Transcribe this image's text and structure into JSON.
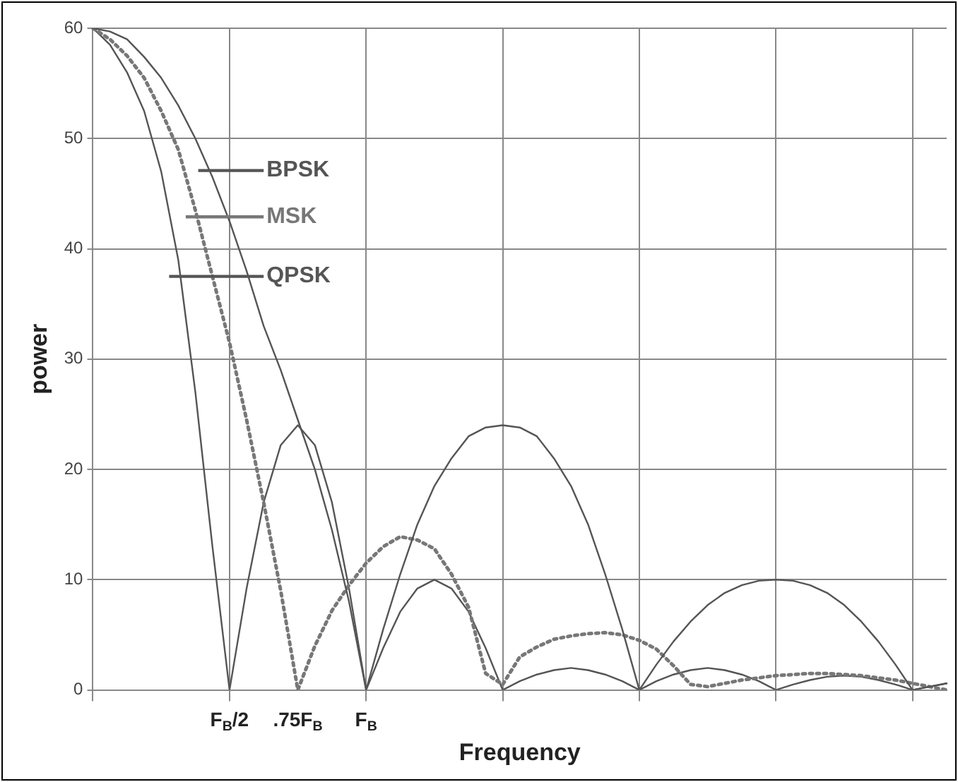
{
  "chart_data": {
    "type": "line",
    "xlabel": "Frequency",
    "ylabel": "power",
    "categories": [
      null,
      null,
      null,
      null,
      null,
      null,
      null,
      null,
      "F$_{B}$/2",
      null,
      null,
      null,
      ".75F$_{B}$",
      null,
      null,
      null,
      "F$_{B}$",
      null,
      null,
      null,
      null,
      null,
      null,
      null,
      null,
      null,
      null,
      null,
      null,
      null,
      null,
      null,
      null,
      null,
      null,
      null,
      null,
      null,
      null,
      null,
      null,
      null,
      null,
      null,
      null,
      null,
      null,
      null,
      null,
      null,
      null
    ],
    "ylim": [
      0,
      60
    ],
    "yticks": [
      0,
      10,
      20,
      30,
      40,
      50,
      60
    ],
    "grid": true,
    "legend": "top left",
    "marker": "none",
    "series": [
      {
        "name": "BPSK",
        "color": "#555555",
        "line_style": "solid",
        "values": [
          60,
          59.7,
          59,
          57.4,
          55.5,
          53,
          50,
          46.5,
          42.5,
          38,
          33,
          29,
          24.5,
          20,
          14.5,
          8,
          0,
          5.5,
          10.5,
          15,
          18.5,
          21,
          23,
          23.8,
          24,
          23.8,
          23,
          21,
          18.5,
          15,
          10.5,
          5.5,
          0,
          2.3,
          4.4,
          6.2,
          7.7,
          8.8,
          9.5,
          9.9,
          10,
          9.9,
          9.5,
          8.8,
          7.7,
          6.2,
          4.4,
          2.3,
          0,
          0.3,
          0.6
        ]
      },
      {
        "name": "MSK",
        "color": "#777777",
        "line_style": "dotted",
        "values": [
          60,
          59,
          57.5,
          55.5,
          52.5,
          49,
          43.5,
          37.5,
          31.5,
          24.5,
          17,
          9,
          0,
          4,
          7.2,
          9.5,
          11.5,
          13,
          13.9,
          13.6,
          12.8,
          10.5,
          7.5,
          1.5,
          0.5,
          3,
          3.9,
          4.6,
          4.9,
          5.1,
          5.2,
          5,
          4.5,
          3.7,
          2.2,
          0.5,
          0.3,
          0.6,
          0.9,
          1.1,
          1.3,
          1.4,
          1.5,
          1.5,
          1.4,
          1.3,
          1.1,
          0.9,
          0.6,
          0.3,
          0
        ]
      },
      {
        "name": "QPSK",
        "color": "#555555",
        "line_style": "solid",
        "values": [
          60,
          58.5,
          56,
          52.5,
          47,
          39,
          27,
          13,
          0,
          9.2,
          17,
          22.2,
          24,
          22.2,
          17,
          9.2,
          0,
          3.8,
          7.1,
          9.2,
          10,
          9.2,
          7.1,
          3.8,
          0,
          0.8,
          1.4,
          1.8,
          2,
          1.8,
          1.4,
          0.8,
          0,
          0.8,
          1.4,
          1.8,
          2,
          1.8,
          1.4,
          0.8,
          0,
          0.5,
          0.9,
          1.2,
          1.3,
          1.2,
          0.9,
          0.5,
          0,
          0.3,
          0.6
        ]
      }
    ]
  }
}
